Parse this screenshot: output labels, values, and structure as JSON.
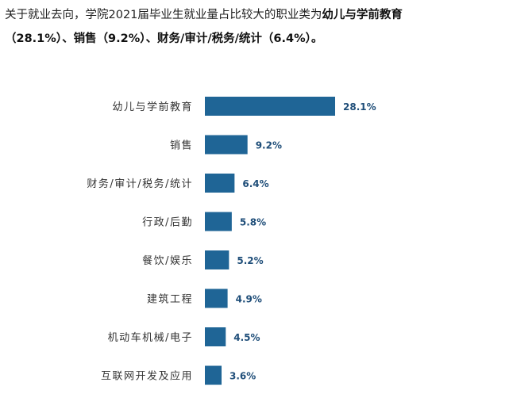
{
  "intro": {
    "prefix": "关于就业去向，学院2021届毕业生就业量占比较大的职业类为",
    "top1": "幼儿与学前教育",
    "top1_value": "（28.1%）",
    "sep1": "、",
    "top2": "销售",
    "top2_value": "（9.2%）",
    "sep2": "、",
    "top3": "财务/审计/税务/统计",
    "top3_value": "（6.4%）",
    "suffix": "。"
  },
  "colors": {
    "bar": "#1f6596",
    "value_text": "#1f4e79",
    "category_text": "#333333"
  },
  "chart_data": {
    "type": "bar",
    "orientation": "horizontal",
    "categories": [
      "幼儿与学前教育",
      "销售",
      "财务/审计/税务/统计",
      "行政/后勤",
      "餐饮/娱乐",
      "建筑工程",
      "机动车机械/电子",
      "互联网开发及应用"
    ],
    "values": [
      28.1,
      9.2,
      6.4,
      5.8,
      5.2,
      4.9,
      4.5,
      3.6
    ],
    "value_labels": [
      "28.1%",
      "9.2%",
      "6.4%",
      "5.8%",
      "5.2%",
      "4.9%",
      "4.5%",
      "3.6%"
    ],
    "unit": "%",
    "xlim": [
      0,
      28.1
    ],
    "grid": false,
    "legend": "none"
  }
}
